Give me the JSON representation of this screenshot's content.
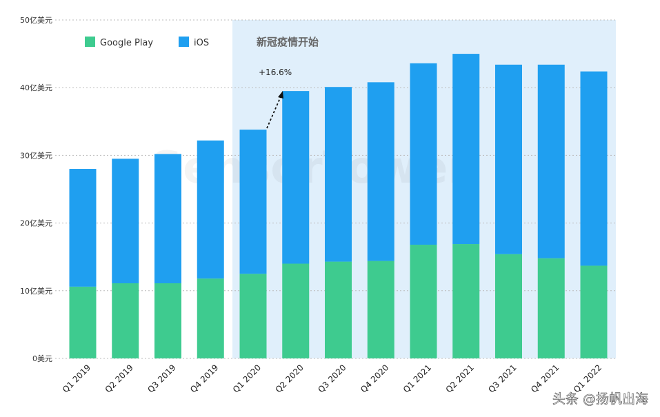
{
  "chart_data": {
    "type": "bar",
    "stacked": true,
    "title": "",
    "xlabel": "",
    "ylabel": "",
    "ylim": [
      0,
      50
    ],
    "y_ticks": [
      0,
      10,
      20,
      30,
      40,
      50
    ],
    "y_tick_labels": [
      "0美元",
      "10亿美元",
      "20亿美元",
      "30亿美元",
      "40亿美元",
      "50亿美元"
    ],
    "grid": true,
    "categories": [
      "Q1 2019",
      "Q2 2019",
      "Q3 2019",
      "Q4 2019",
      "Q1 2020",
      "Q2 2020",
      "Q3 2020",
      "Q4 2020",
      "Q1 2021",
      "Q2 2021",
      "Q3 2021",
      "Q4 2021",
      "Q1 2022"
    ],
    "series": [
      {
        "name": "Google Play",
        "color": "#3ecb8f",
        "values": [
          10.6,
          11.1,
          11.1,
          11.8,
          12.5,
          14.0,
          14.3,
          14.4,
          16.8,
          16.9,
          15.4,
          14.8,
          13.7
        ]
      },
      {
        "name": "iOS",
        "color": "#1f9ff0",
        "values": [
          17.4,
          18.4,
          19.1,
          20.4,
          21.3,
          25.5,
          25.8,
          26.4,
          26.8,
          28.1,
          28.0,
          28.6,
          28.7
        ]
      }
    ],
    "legend_position": "top-left",
    "highlight": {
      "label": "新冠疫情开始",
      "from_category": "Q1 2020",
      "to_category": "Q1 2022",
      "color": "#e0effb"
    },
    "annotations": [
      {
        "text": "+16.6%",
        "from": "Q1 2020",
        "to": "Q2 2020"
      }
    ],
    "watermark": "SensorTower"
  },
  "footer": {
    "credit": "头条 @扬帆出海"
  }
}
